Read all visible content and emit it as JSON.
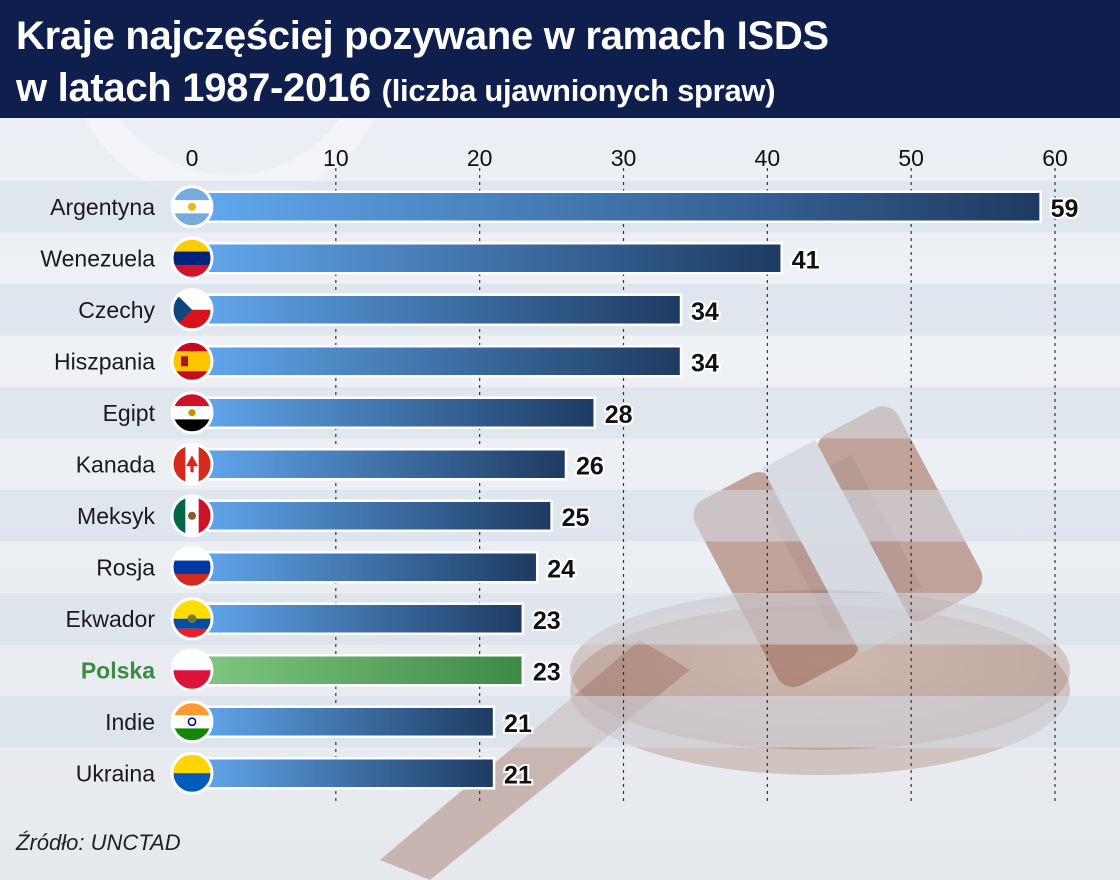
{
  "header": {
    "title_line1": "Kraje najczęściej pozywane w ramach ISDS",
    "title_line2": "w latach 1987-2016",
    "subtitle": "(liczba ujawnionych spraw)"
  },
  "source": "Źródło: UNCTAD",
  "colors": {
    "header_bg": "#0f1f4d",
    "bar_light": "#5ea3e8",
    "bar_dark": "#1d3b62",
    "highlight_light": "#7cc47f",
    "highlight_dark": "#3d8a45",
    "highlight_label": "#3d8a45",
    "stripe": "#d6deea"
  },
  "chart_data": {
    "type": "bar",
    "orientation": "horizontal",
    "categories": [
      "Argentyna",
      "Wenezuela",
      "Czechy",
      "Hiszpania",
      "Egipt",
      "Kanada",
      "Meksyk",
      "Rosja",
      "Ekwador",
      "Polska",
      "Indie",
      "Ukraina"
    ],
    "values": [
      59,
      41,
      34,
      34,
      28,
      26,
      25,
      24,
      23,
      23,
      21,
      21
    ],
    "highlight": "Polska",
    "flags": [
      "flag-argentina-icon",
      "flag-venezuela-icon",
      "flag-czech-icon",
      "flag-spain-icon",
      "flag-egypt-icon",
      "flag-canada-icon",
      "flag-mexico-icon",
      "flag-russia-icon",
      "flag-ecuador-icon",
      "flag-poland-icon",
      "flag-india-icon",
      "flag-ukraine-icon"
    ],
    "xlim": [
      0,
      60
    ],
    "xticks": [
      0,
      10,
      20,
      30,
      40,
      50,
      60
    ],
    "grid": true,
    "axis_position": "top"
  }
}
